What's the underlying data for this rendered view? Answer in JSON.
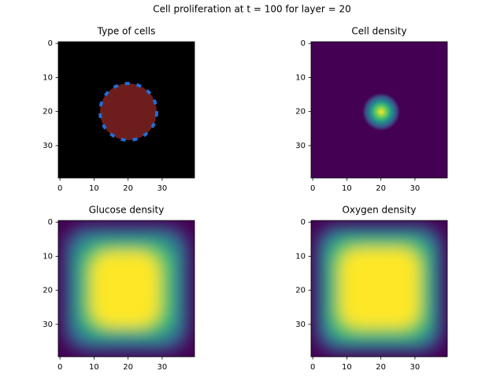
{
  "title": "Cell proliferation at t = 100 for layer = 20",
  "chart_data": [
    {
      "type": "heatmap",
      "title": "Type of cells",
      "xlim": [
        -0.5,
        39.5
      ],
      "ylim": [
        39.5,
        -0.5
      ],
      "xticks": [
        0,
        10,
        20,
        30
      ],
      "yticks": [
        0,
        10,
        20,
        30
      ]
    },
    {
      "type": "heatmap",
      "title": "Cell density",
      "xlim": [
        -0.5,
        39.5
      ],
      "ylim": [
        39.5,
        -0.5
      ],
      "xticks": [
        0,
        10,
        20,
        30
      ],
      "yticks": [
        0,
        10,
        20,
        30
      ]
    },
    {
      "type": "heatmap",
      "title": "Glucose density",
      "xlim": [
        -0.5,
        39.5
      ],
      "ylim": [
        39.5,
        -0.5
      ],
      "xticks": [
        0,
        10,
        20,
        30
      ],
      "yticks": [
        0,
        10,
        20,
        30
      ]
    },
    {
      "type": "heatmap",
      "title": "Oxygen density",
      "xlim": [
        -0.5,
        39.5
      ],
      "ylim": [
        39.5,
        -0.5
      ],
      "xticks": [
        0,
        10,
        20,
        30
      ],
      "yticks": [
        0,
        10,
        20,
        30
      ]
    }
  ]
}
